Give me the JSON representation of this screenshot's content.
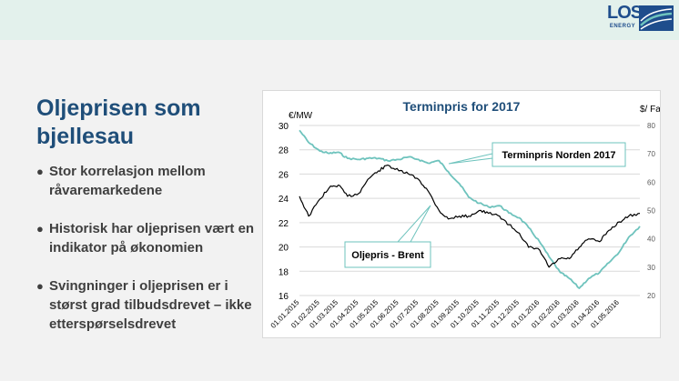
{
  "brand": {
    "logo_text": "LOS",
    "logo_subtext": "ENERGY",
    "color_dark": "#1e4d8c",
    "color_light": "#6ec3bd"
  },
  "slide": {
    "title": "Oljeprisen som bjellesau",
    "bullets": [
      "Stor korrelasjon mellom råvaremarkedene",
      "Historisk har oljeprisen vært en indikator på økonomien",
      "Svingninger i oljeprisen er i størst grad tilbudsdrevet – ikke etterspørselsdrevet"
    ],
    "bullet_symbol": "●",
    "title_color": "#1f4e79"
  },
  "chart_data": {
    "type": "line",
    "title": "Terminpris for 2017",
    "y_left_label": "€/MW",
    "y_right_label": "$/ Fat",
    "ylim_left": [
      16,
      30
    ],
    "y_left_ticks": [
      16,
      18,
      20,
      22,
      24,
      26,
      28,
      30
    ],
    "ylim_right": [
      20,
      80
    ],
    "y_right_ticks": [
      20,
      30,
      40,
      50,
      60,
      70,
      80
    ],
    "x_ticks": [
      "01.01.2015",
      "01.02.2015",
      "01.03.2015",
      "01.04.2015",
      "01.05.2015",
      "01.06.2015",
      "01.07.2015",
      "01.08.2015",
      "01.09.2015",
      "01.10.2015",
      "01.11.2015",
      "01.12.2015",
      "01.01.2016",
      "01.02.2016",
      "01.03.2016",
      "01.04.2016",
      "01.05.2016"
    ],
    "grid": true,
    "series": [
      {
        "name": "Terminpris Norden 2017",
        "axis": "left",
        "color": "#6ec3bd",
        "points": [
          [
            "01.01.2015",
            29.6
          ],
          [
            "15.01.2015",
            28.6
          ],
          [
            "01.02.2015",
            27.9
          ],
          [
            "15.02.2015",
            27.7
          ],
          [
            "01.03.2015",
            27.8
          ],
          [
            "15.03.2015",
            27.3
          ],
          [
            "01.04.2015",
            27.2
          ],
          [
            "15.04.2015",
            27.3
          ],
          [
            "01.05.2015",
            27.3
          ],
          [
            "15.05.2015",
            27.1
          ],
          [
            "01.06.2015",
            27.2
          ],
          [
            "15.06.2015",
            27.4
          ],
          [
            "01.07.2015",
            27.2
          ],
          [
            "15.07.2015",
            26.9
          ],
          [
            "01.08.2015",
            27.1
          ],
          [
            "15.08.2015",
            26.2
          ],
          [
            "01.09.2015",
            25.2
          ],
          [
            "15.09.2015",
            24.1
          ],
          [
            "01.10.2015",
            23.6
          ],
          [
            "15.10.2015",
            23.3
          ],
          [
            "01.11.2015",
            23.4
          ],
          [
            "15.11.2015",
            22.8
          ],
          [
            "01.12.2015",
            22.4
          ],
          [
            "15.12.2015",
            21.6
          ],
          [
            "01.01.2016",
            20.4
          ],
          [
            "15.01.2016",
            19.2
          ],
          [
            "01.02.2016",
            17.9
          ],
          [
            "15.02.2016",
            17.4
          ],
          [
            "01.03.2016",
            16.6
          ],
          [
            "15.03.2016",
            17.4
          ],
          [
            "01.04.2016",
            17.9
          ],
          [
            "15.04.2016",
            18.7
          ],
          [
            "01.05.2016",
            19.6
          ],
          [
            "15.05.2016",
            20.8
          ],
          [
            "01.06.2016",
            21.7
          ]
        ]
      },
      {
        "name": "Oljepris - Brent",
        "axis": "right",
        "color": "#000000",
        "points": [
          [
            "01.01.2015",
            55
          ],
          [
            "15.01.2015",
            48
          ],
          [
            "01.02.2015",
            54
          ],
          [
            "15.02.2015",
            58
          ],
          [
            "01.03.2015",
            59
          ],
          [
            "15.03.2015",
            55
          ],
          [
            "01.04.2015",
            56
          ],
          [
            "15.04.2015",
            61
          ],
          [
            "01.05.2015",
            64
          ],
          [
            "15.05.2015",
            66
          ],
          [
            "01.06.2015",
            64
          ],
          [
            "15.06.2015",
            63
          ],
          [
            "01.07.2015",
            61
          ],
          [
            "15.07.2015",
            57
          ],
          [
            "01.08.2015",
            50
          ],
          [
            "15.08.2015",
            47
          ],
          [
            "01.09.2015",
            48
          ],
          [
            "15.09.2015",
            48
          ],
          [
            "01.10.2015",
            50
          ],
          [
            "15.10.2015",
            49
          ],
          [
            "01.11.2015",
            48
          ],
          [
            "15.11.2015",
            45
          ],
          [
            "01.12.2015",
            42
          ],
          [
            "15.12.2015",
            37
          ],
          [
            "01.01.2016",
            36
          ],
          [
            "15.01.2016",
            30
          ],
          [
            "01.02.2016",
            33
          ],
          [
            "15.02.2016",
            33
          ],
          [
            "01.03.2016",
            37
          ],
          [
            "15.03.2016",
            40
          ],
          [
            "01.04.2016",
            39
          ],
          [
            "15.04.2016",
            43
          ],
          [
            "01.05.2016",
            46
          ],
          [
            "15.05.2016",
            48
          ],
          [
            "01.06.2016",
            49
          ]
        ]
      }
    ],
    "callouts": [
      "Terminpris Norden 2017",
      "Oljepris - Brent"
    ]
  }
}
